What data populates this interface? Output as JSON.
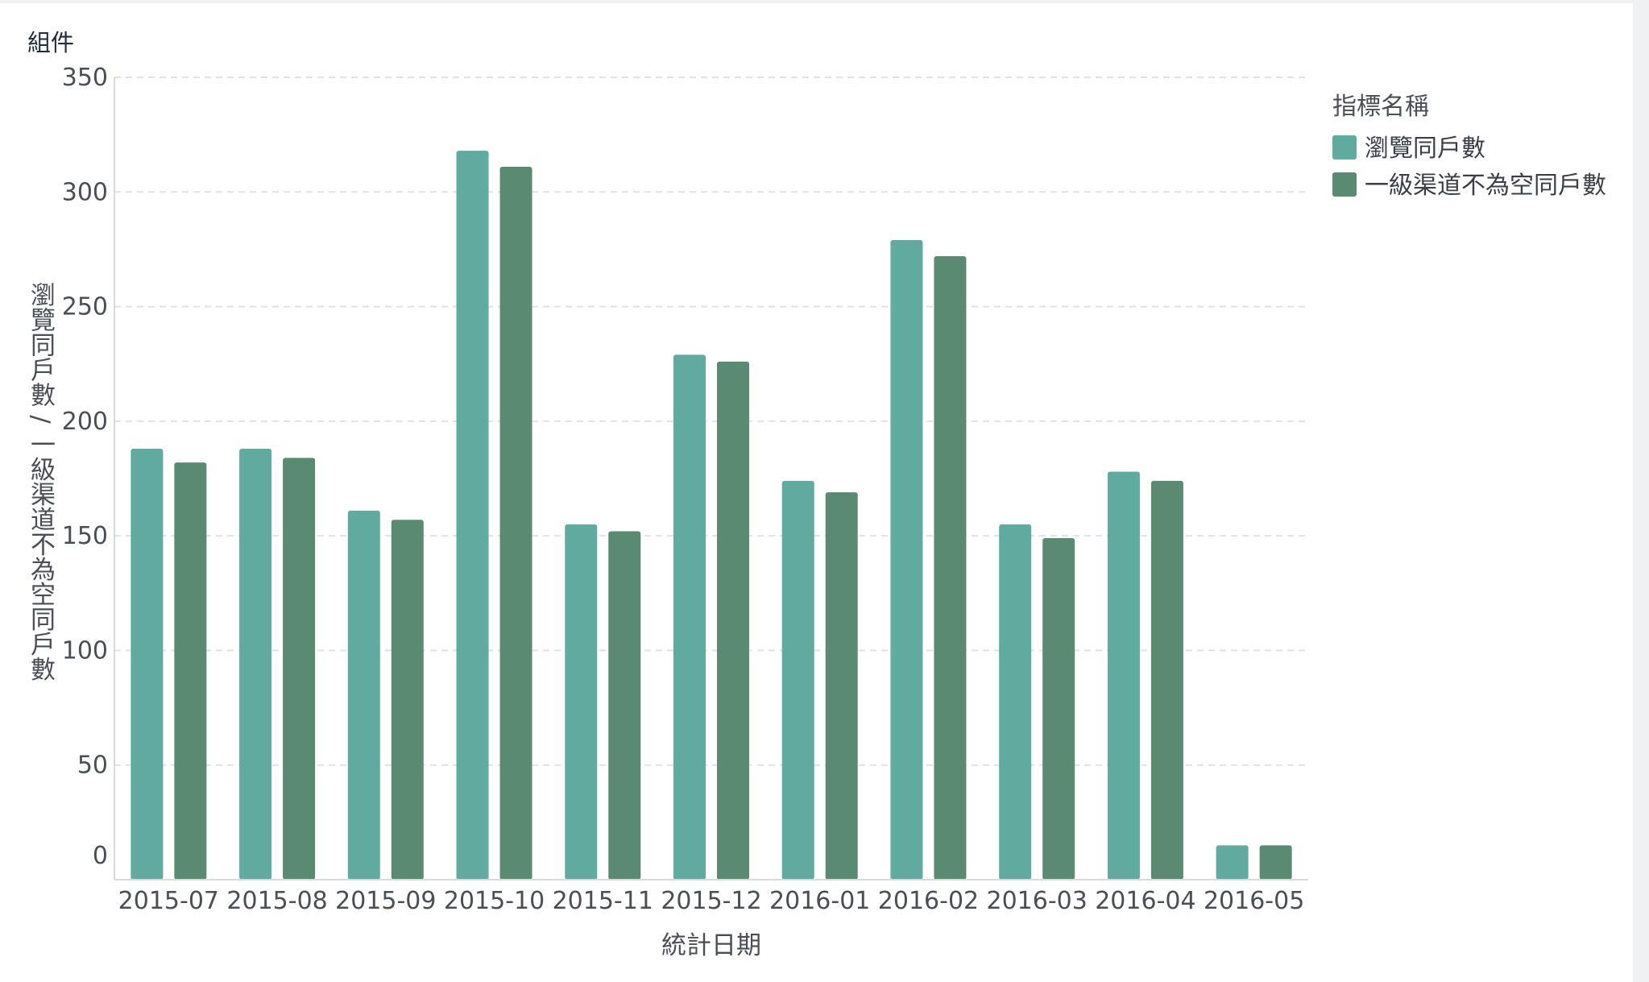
{
  "panel": {
    "title": "組件"
  },
  "chart_data": {
    "type": "bar",
    "categories": [
      "2015-07",
      "2015-08",
      "2015-09",
      "2015-10",
      "2015-11",
      "2015-12",
      "2016-01",
      "2016-02",
      "2016-03",
      "2016-04",
      "2016-05"
    ],
    "series": [
      {
        "name": "瀏覽同戶數",
        "color": "#60aa9f",
        "values": [
          188,
          188,
          161,
          318,
          155,
          229,
          174,
          279,
          155,
          178,
          15
        ]
      },
      {
        "name": "一級渠道不為空同戶數",
        "color": "#5b8a72",
        "values": [
          182,
          184,
          157,
          311,
          152,
          226,
          169,
          272,
          149,
          174,
          15
        ]
      }
    ],
    "y_tick_labels": [
      "0",
      "50",
      "100",
      "150",
      "200",
      "250",
      "300",
      "350"
    ],
    "xlabel": "統計日期",
    "ylabel": "瀏覽同戶數 / 一級渠道不為空同戶數",
    "ylim": [
      0,
      350
    ],
    "grid": true,
    "legend_title": "指標名稱",
    "legend_position": "top-right"
  }
}
